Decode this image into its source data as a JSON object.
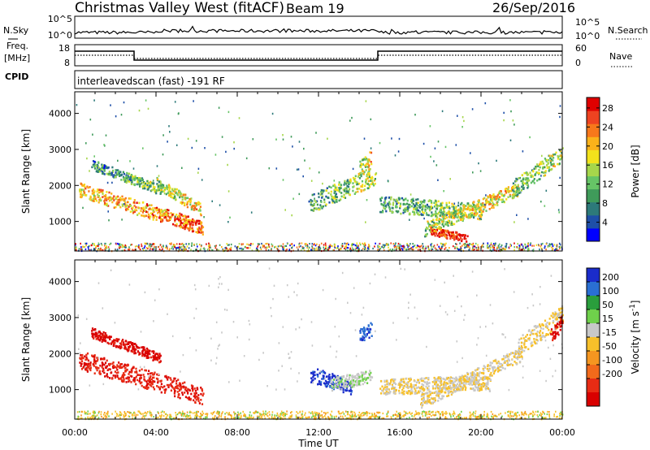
{
  "header": {
    "title": "Christmas Valley West (fitACF)",
    "beam": "Beam 19",
    "date": "26/Sep/2016"
  },
  "noise_panel": {
    "left_label": "N.Sky",
    "left_ticks": [
      "10^5",
      "10^0"
    ],
    "right_ticks": [
      "10^5",
      "10^0"
    ],
    "right_label": "N.Search"
  },
  "freq_panel": {
    "left_label_1": "Freq.",
    "left_label_2": "[MHz]",
    "left_ticks": [
      "18",
      "8"
    ],
    "right_ticks": [
      "60",
      "0"
    ],
    "right_label": "Nave"
  },
  "cpid": {
    "label": "CPID",
    "text": "interleavedscan (fast) -191 RF"
  },
  "chart_data": [
    {
      "type": "heatmap",
      "panel": "power",
      "ylabel": "Slant Range [km]",
      "yticks": [
        1000,
        2000,
        3000,
        4000
      ],
      "ylim": [
        180,
        4600
      ],
      "xlim_hours": [
        0,
        24
      ],
      "colorbar": {
        "label": "Power [dB]",
        "ticks": [
          "4",
          "8",
          "12",
          "16",
          "20",
          "24",
          "28"
        ],
        "colors": [
          "#0000ff",
          "#1e4fa8",
          "#2d7a7a",
          "#3f9b5a",
          "#66c466",
          "#a6d64b",
          "#f2e21c",
          "#fbb21a",
          "#f7781b",
          "#ee4321",
          "#e00000"
        ]
      },
      "regions": [
        {
          "t0": 0.2,
          "t1": 6.3,
          "r0": 1900,
          "r1": 850,
          "band": 200,
          "mid": 0.72
        },
        {
          "t0": 0.8,
          "t1": 4.2,
          "r0": 2600,
          "r1": 1900,
          "band": 140,
          "mid": 0.35
        },
        {
          "t0": 4.0,
          "t1": 6.2,
          "r0": 2100,
          "r1": 1350,
          "band": 160,
          "mid": 0.55
        },
        {
          "t0": 11.5,
          "t1": 14.8,
          "r0": 1500,
          "r1": 2300,
          "band": 260,
          "mid": 0.42
        },
        {
          "t0": 14.0,
          "t1": 14.6,
          "r0": 2500,
          "r1": 2800,
          "band": 200,
          "mid": 0.55
        },
        {
          "t0": 15.0,
          "t1": 20.0,
          "r0": 1500,
          "r1": 1300,
          "band": 220,
          "mid": 0.4
        },
        {
          "t0": 17.2,
          "t1": 21.8,
          "r0": 800,
          "r1": 1900,
          "band": 200,
          "mid": 0.55
        },
        {
          "t0": 17.5,
          "t1": 19.3,
          "r0": 750,
          "r1": 560,
          "band": 110,
          "mid": 0.92
        },
        {
          "t0": 21.5,
          "t1": 24.0,
          "r0": 1900,
          "r1": 2900,
          "band": 240,
          "mid": 0.45
        }
      ]
    },
    {
      "type": "heatmap",
      "panel": "velocity",
      "ylabel": "Slant Range [km]",
      "yticks": [
        1000,
        2000,
        3000,
        4000
      ],
      "ylim": [
        180,
        4600
      ],
      "xlim_hours": [
        0,
        24
      ],
      "xticks": [
        "00:00",
        "04:00",
        "08:00",
        "12:00",
        "16:00",
        "20:00",
        "00:00"
      ],
      "xlabel": "Time UT",
      "colorbar": {
        "label": "Velocity [m s",
        "label_sup": "-1",
        "label_end": "]",
        "ticks": [
          "200",
          "100",
          "50",
          "15",
          "-15",
          "-50",
          "-100",
          "-200"
        ],
        "colors": [
          "#1a2ccb",
          "#2a6fd3",
          "#2a9e3c",
          "#6fd04b",
          "#c8c8c8",
          "#f7c02a",
          "#f59620",
          "#f26a1b",
          "#e82c14",
          "#d90000"
        ]
      },
      "regions": [
        {
          "t0": 0.2,
          "t1": 6.3,
          "r0": 1850,
          "r1": 850,
          "band": 260,
          "vel": -150
        },
        {
          "t0": 0.8,
          "t1": 4.2,
          "r0": 2600,
          "r1": 1900,
          "band": 140,
          "vel": -180
        },
        {
          "t0": 11.6,
          "t1": 13.6,
          "r0": 1450,
          "r1": 1100,
          "band": 220,
          "vel": 180
        },
        {
          "t0": 12.5,
          "t1": 14.6,
          "r0": 1150,
          "r1": 1400,
          "band": 180,
          "vel": 30
        },
        {
          "t0": 14.0,
          "t1": 14.6,
          "r0": 2500,
          "r1": 2700,
          "band": 200,
          "vel": 150
        },
        {
          "t0": 15.0,
          "t1": 20.5,
          "r0": 1100,
          "r1": 1200,
          "band": 220,
          "vel": 0
        },
        {
          "t0": 17.0,
          "t1": 22.0,
          "r0": 700,
          "r1": 2000,
          "band": 200,
          "vel": 0
        },
        {
          "t0": 21.8,
          "t1": 24.0,
          "r0": 2200,
          "r1": 3100,
          "band": 260,
          "vel": -5
        },
        {
          "t0": 23.4,
          "t1": 24.0,
          "r0": 2500,
          "r1": 2900,
          "band": 200,
          "vel": -180
        }
      ]
    }
  ]
}
